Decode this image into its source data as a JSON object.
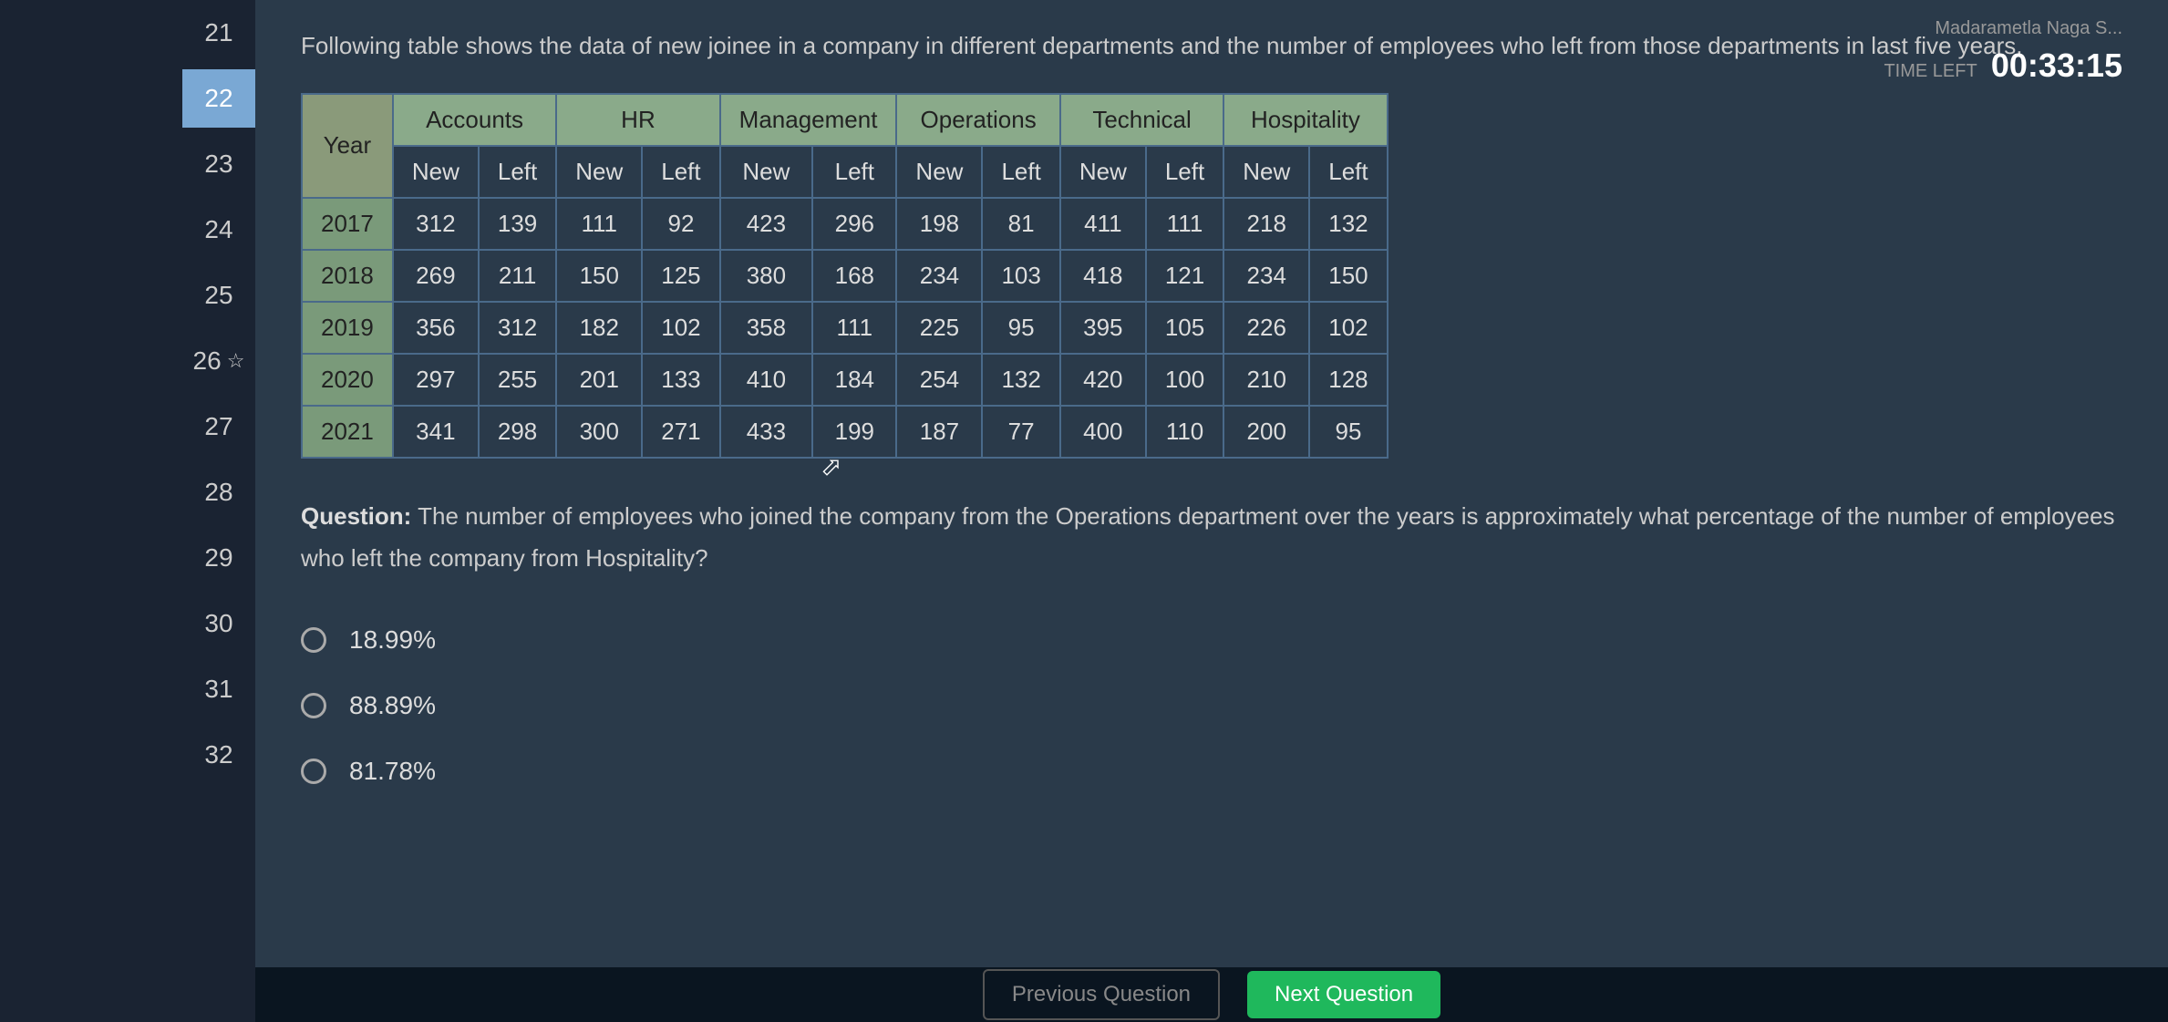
{
  "topBar": {
    "userName": "Madarametla Naga S...",
    "timeLeftLabel": "TIME LEFT",
    "timeLeftValue": "00:33:15"
  },
  "sidebar": {
    "items": [
      {
        "num": "21",
        "active": false,
        "starred": false
      },
      {
        "num": "22",
        "active": true,
        "starred": false
      },
      {
        "num": "23",
        "active": false,
        "starred": false
      },
      {
        "num": "24",
        "active": false,
        "starred": false
      },
      {
        "num": "25",
        "active": false,
        "starred": false
      },
      {
        "num": "26",
        "active": false,
        "starred": true
      },
      {
        "num": "27",
        "active": false,
        "starred": false
      },
      {
        "num": "28",
        "active": false,
        "starred": false
      },
      {
        "num": "29",
        "active": false,
        "starred": false
      },
      {
        "num": "30",
        "active": false,
        "starred": false
      },
      {
        "num": "31",
        "active": false,
        "starred": false
      },
      {
        "num": "32",
        "active": false,
        "starred": false
      }
    ]
  },
  "introText": "Following table shows the data of new joinee in a company in different departments and the number of employees who left from those departments in last five years.",
  "table": {
    "yearHeader": "Year",
    "departments": [
      "Accounts",
      "HR",
      "Management",
      "Operations",
      "Technical",
      "Hospitality"
    ],
    "subHeaders": [
      "New",
      "Left"
    ],
    "rows": [
      {
        "year": "2017",
        "cells": [
          "312",
          "139",
          "111",
          "92",
          "423",
          "296",
          "198",
          "81",
          "411",
          "111",
          "218",
          "132"
        ]
      },
      {
        "year": "2018",
        "cells": [
          "269",
          "211",
          "150",
          "125",
          "380",
          "168",
          "234",
          "103",
          "418",
          "121",
          "234",
          "150"
        ]
      },
      {
        "year": "2019",
        "cells": [
          "356",
          "312",
          "182",
          "102",
          "358",
          "111",
          "225",
          "95",
          "395",
          "105",
          "226",
          "102"
        ]
      },
      {
        "year": "2020",
        "cells": [
          "297",
          "255",
          "201",
          "133",
          "410",
          "184",
          "254",
          "132",
          "420",
          "100",
          "210",
          "128"
        ]
      },
      {
        "year": "2021",
        "cells": [
          "341",
          "298",
          "300",
          "271",
          "433",
          "199",
          "187",
          "77",
          "400",
          "110",
          "200",
          "95"
        ]
      }
    ],
    "colors": {
      "border": "#4a6a8a",
      "headerBg": "#8aaa8a",
      "yearBg": "#7a9a7a",
      "cellText": "#ddd"
    }
  },
  "question": {
    "label": "Question:",
    "text": "The number of employees who joined the company from the Operations department over the years is approximately what percentage of the number of employees who left the company from Hospitality?"
  },
  "options": [
    {
      "value": "18.99%"
    },
    {
      "value": "88.89%"
    },
    {
      "value": "81.78%"
    }
  ],
  "bottomBar": {
    "prevLabel": "Previous Question",
    "nextLabel": "Next Question"
  }
}
